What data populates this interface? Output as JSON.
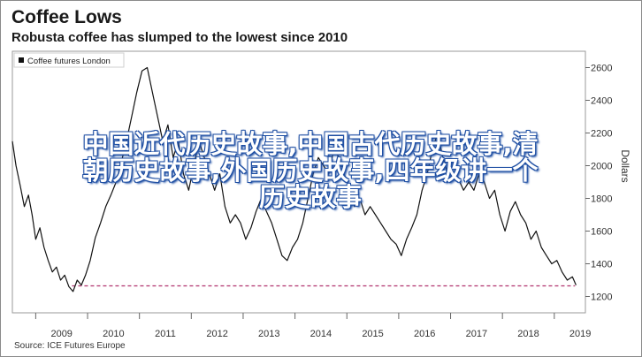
{
  "chart_data": {
    "type": "line",
    "title": "Coffee Lows",
    "subtitle": "Robusta coffee has slumped to the lowest since 2010",
    "source": "Source: ICE Futures Europe",
    "ylabel": "Dollars",
    "legend": {
      "label": "Coffee futures London",
      "placement": "top-left"
    },
    "ylim": [
      1100,
      2700
    ],
    "yticks": [
      1200,
      1400,
      1600,
      1800,
      2000,
      2200,
      2400,
      2600
    ],
    "xlim": [
      2008.55,
      2019.6
    ],
    "xtick_labels": [
      "2009",
      "2010",
      "2011",
      "2012",
      "2013",
      "2014",
      "2015",
      "2016",
      "2017",
      "2018",
      "2019"
    ],
    "colors": {
      "line": "#111111",
      "reference": "#b0326e",
      "axis": "#666666"
    },
    "reference_line": {
      "y": 1265,
      "x_start": 2009.7,
      "x_end": 2019.4,
      "style": "dashed"
    },
    "series": [
      {
        "x": [
          2008.55,
          2008.62,
          2008.7,
          2008.78,
          2008.86,
          2008.93,
          2009.0,
          2009.08,
          2009.16,
          2009.24,
          2009.32,
          2009.4,
          2009.48,
          2009.56,
          2009.64,
          2009.72,
          2009.8,
          2009.88,
          2009.96,
          2010.05,
          2010.15,
          2010.25,
          2010.35,
          2010.45,
          2010.55,
          2010.65,
          2010.75,
          2010.85,
          2010.95,
          2011.05,
          2011.15,
          2011.25,
          2011.35,
          2011.45,
          2011.55,
          2011.65,
          2011.75,
          2011.85,
          2011.95,
          2012.05,
          2012.15,
          2012.25,
          2012.35,
          2012.45,
          2012.55,
          2012.65,
          2012.75,
          2012.85,
          2012.95,
          2013.05,
          2013.15,
          2013.25,
          2013.35,
          2013.45,
          2013.55,
          2013.65,
          2013.75,
          2013.85,
          2013.95,
          2014.05,
          2014.15,
          2014.25,
          2014.35,
          2014.45,
          2014.55,
          2014.65,
          2014.75,
          2014.85,
          2014.95,
          2015.05,
          2015.15,
          2015.25,
          2015.35,
          2015.45,
          2015.55,
          2015.65,
          2015.75,
          2015.85,
          2015.95,
          2016.05,
          2016.15,
          2016.25,
          2016.35,
          2016.45,
          2016.55,
          2016.65,
          2016.75,
          2016.85,
          2016.95,
          2017.05,
          2017.15,
          2017.25,
          2017.35,
          2017.45,
          2017.55,
          2017.65,
          2017.75,
          2017.85,
          2017.95,
          2018.05,
          2018.15,
          2018.25,
          2018.35,
          2018.45,
          2018.55,
          2018.65,
          2018.75,
          2018.85,
          2018.95,
          2019.05,
          2019.15,
          2019.25,
          2019.35,
          2019.42
        ],
        "values": [
          2150,
          2000,
          1880,
          1750,
          1820,
          1700,
          1550,
          1620,
          1500,
          1420,
          1350,
          1380,
          1300,
          1330,
          1260,
          1230,
          1300,
          1270,
          1330,
          1420,
          1560,
          1650,
          1750,
          1820,
          1900,
          2020,
          2150,
          2300,
          2450,
          2580,
          2600,
          2450,
          2300,
          2150,
          2250,
          2050,
          2150,
          1950,
          1850,
          2000,
          2150,
          2050,
          1950,
          1850,
          1950,
          1750,
          1650,
          1700,
          1650,
          1550,
          1620,
          1720,
          1800,
          1720,
          1650,
          1550,
          1450,
          1420,
          1500,
          1550,
          1650,
          1800,
          1950,
          2050,
          2000,
          1950,
          2100,
          2050,
          1950,
          1850,
          1750,
          1800,
          1700,
          1750,
          1700,
          1650,
          1600,
          1550,
          1520,
          1450,
          1550,
          1620,
          1700,
          1850,
          1950,
          2100,
          2200,
          2050,
          1950,
          2000,
          1920,
          1850,
          1900,
          1850,
          1950,
          1900,
          1800,
          1850,
          1700,
          1600,
          1720,
          1780,
          1700,
          1650,
          1550,
          1600,
          1500,
          1450,
          1400,
          1420,
          1350,
          1300,
          1320,
          1270
        ]
      }
    ]
  },
  "overlay_text": {
    "line1": "中国近代历史故事,中国古代历史故事,清",
    "line2": "朝历史故事,外国历史故事,四年级讲一个",
    "line3": "历史故事"
  }
}
